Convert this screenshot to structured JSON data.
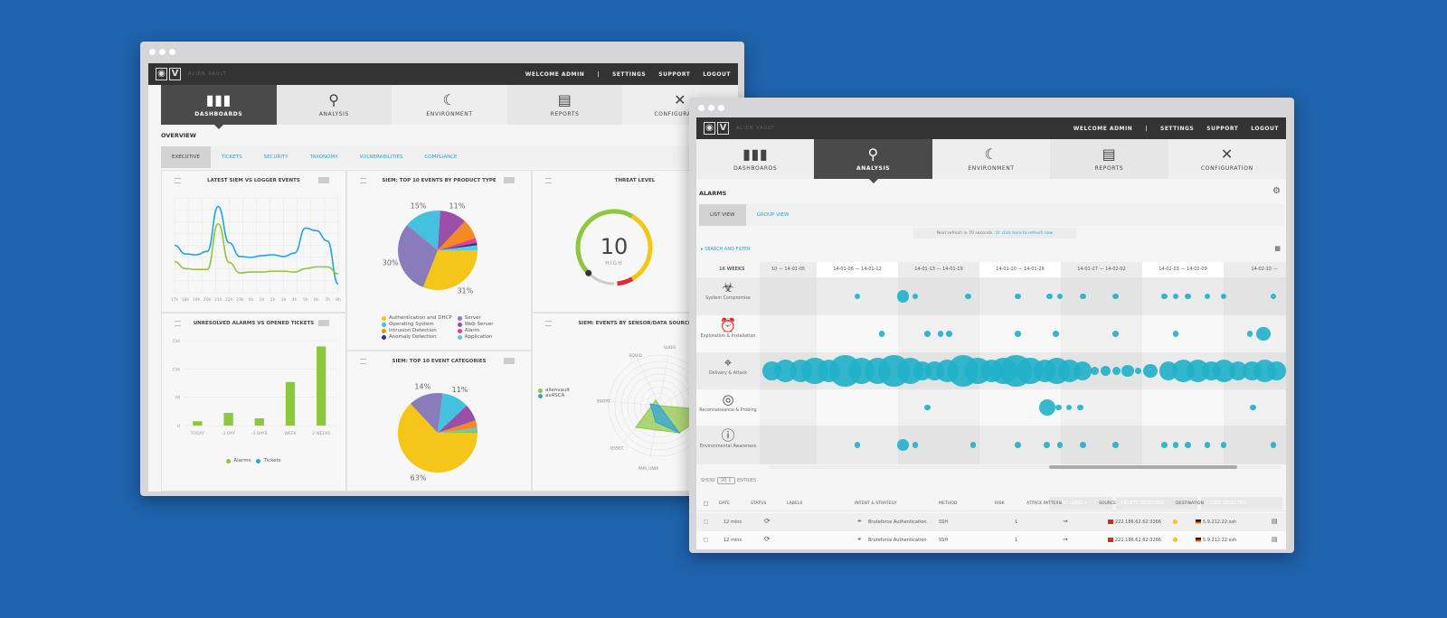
{
  "colors": {
    "background": "#1f63ad",
    "accent": "#2aa3d2",
    "green": "#8dc63f",
    "blue": "#29a3dd",
    "yellow": "#f5c518",
    "bubble": "#1fb0c9"
  },
  "brand": {
    "logo": "V",
    "name": "ALIEN VAULT"
  },
  "topmenu": {
    "welcome": "WELCOME ADMIN",
    "sep": "|",
    "settings": "SETTINGS",
    "support": "SUPPORT",
    "logout": "LOGOUT"
  },
  "nav": [
    {
      "label": "DASHBOARDS",
      "icon": "bar-chart-icon"
    },
    {
      "label": "ANALYSIS",
      "icon": "magnifier-icon"
    },
    {
      "label": "ENVIRONMENT",
      "icon": "planet-icon"
    },
    {
      "label": "REPORTS",
      "icon": "document-icon"
    },
    {
      "label": "CONFIGURATION",
      "icon": "tools-icon"
    }
  ],
  "dashboard": {
    "section": "OVERVIEW",
    "tabs": [
      "EXECUTIVE",
      "TICKETS",
      "SECURITY",
      "TAXONOMY",
      "VULNERABILITIES",
      "COMPLIANCE"
    ],
    "panels": {
      "line": "LATEST SIEM VS LOGGER EVENTS",
      "pie1": "SIEM: TOP 10 EVENTS BY PRODUCT TYPE",
      "threat": "THREAT LEVEL",
      "bars": "UNRESOLVED ALARMS VS OPENED TICKETS",
      "pie2": "SIEM: TOP 10 EVENT CATEGORIES",
      "radar": "SIEM: EVENTS BY SENSOR/DATA SOURCE"
    },
    "threat": {
      "value": "10",
      "label": "HIGH",
      "level": 0.85
    }
  },
  "chart_data": [
    {
      "type": "line",
      "x": [
        "17h",
        "18h",
        "19h",
        "20h",
        "21h",
        "22h",
        "23h",
        "0h",
        "1h",
        "2h",
        "3h",
        "4h",
        "5h",
        "6h",
        "7h",
        "8h"
      ],
      "series": [
        {
          "color": "#29a3dd",
          "values": [
            55,
            45,
            44,
            48,
            100,
            58,
            42,
            41,
            43,
            44,
            42,
            46,
            75,
            72,
            60,
            10
          ]
        },
        {
          "color": "#8dc63f",
          "values": [
            36,
            28,
            27,
            27,
            80,
            35,
            23,
            24,
            24,
            25,
            25,
            24,
            28,
            30,
            30,
            22
          ]
        }
      ]
    },
    {
      "type": "pie",
      "labels": [
        "Authentication and DHCP",
        "Server",
        "Operating System",
        "Web Server",
        "Intrusion Detection",
        "Alarm",
        "Anomaly Detection",
        "Application"
      ],
      "colors": [
        "#f5c518",
        "#8a7bbd",
        "#43c1df",
        "#9b4fa8",
        "#f58b1f",
        "#e0409a",
        "#223a8a",
        "#5cc9d6"
      ],
      "values": [
        31,
        30,
        15,
        11,
        8,
        2,
        1,
        2
      ],
      "data_labels": [
        "31%",
        "30%",
        "15%",
        "11%",
        "",
        "",
        "",
        ""
      ]
    },
    {
      "type": "bar",
      "categories": [
        "TODAY",
        "-1 DAY",
        "-2 DAYS",
        "WEEK",
        "2 WEEKS"
      ],
      "yticks": [
        "0",
        "78",
        "156",
        "234"
      ],
      "ylim": [
        0,
        234
      ],
      "series": [
        {
          "name": "Alarms",
          "color": "#8dc63f",
          "values": [
            12,
            35,
            20,
            120,
            218
          ]
        },
        {
          "name": "Tickets",
          "color": "#29a3dd",
          "values": [
            0,
            0,
            0,
            0,
            0
          ]
        }
      ]
    },
    {
      "type": "pie",
      "colors": [
        "#f5c518",
        "#8a7bbd",
        "#43c1df",
        "#9b4fa8",
        "#f58b1f",
        "#5cc9d6",
        "#8dc63f"
      ],
      "values": [
        63,
        14,
        11,
        7,
        3,
        1,
        1
      ],
      "data_labels": [
        "63%",
        "14%",
        "11%",
        "",
        "",
        "",
        ""
      ]
    },
    {
      "type": "radar",
      "axes": [
        "SUDO",
        "SQUID",
        "SNORT",
        "OSSEC",
        "PAM_UNIX"
      ],
      "series": [
        {
          "name": "alienvault",
          "color": "#8dc63f"
        },
        {
          "name": "av4SCA",
          "color": "#29a3dd"
        }
      ]
    }
  ],
  "alarms": {
    "section": "ALARMS",
    "tabs": [
      "LIST VIEW",
      "GROUP VIEW"
    ],
    "refresh": "Next refresh in 70 seconds.",
    "refresh_link": "Or click here to refresh now",
    "search": "▸ SEARCH AND FILTER",
    "weeks_label": "16 WEEKS",
    "weeks": [
      "10 — 14-01-05",
      "14-01-06 — 14-01-12",
      "14-01-13 — 14-01-19",
      "14-01-20 — 14-01-26",
      "14-01-27 — 14-02-02",
      "14-02-03 — 14-02-09",
      "14-02-10 —"
    ],
    "categories": [
      {
        "label": "System Compromise",
        "icon": "biohazard-icon",
        "bubbles": [
          [
            1.5,
            1
          ],
          [
            2.06,
            2.5
          ],
          [
            2.21,
            1
          ],
          [
            2.86,
            1
          ],
          [
            3.47,
            1
          ],
          [
            3.86,
            1
          ],
          [
            3.99,
            1
          ],
          [
            4.27,
            1
          ],
          [
            4.67,
            1
          ],
          [
            5.27,
            1
          ],
          [
            5.41,
            1
          ],
          [
            5.56,
            1
          ],
          [
            5.8,
            1
          ],
          [
            6.0,
            1
          ],
          [
            6.61,
            1
          ]
        ]
      },
      {
        "label": "Exploration & Installation",
        "icon": "alarm-clock-icon",
        "bubbles": [
          [
            1.8,
            1
          ],
          [
            2.36,
            1
          ],
          [
            2.52,
            1
          ],
          [
            2.63,
            1
          ],
          [
            3.47,
            1
          ],
          [
            3.94,
            1
          ],
          [
            4.67,
            1
          ],
          [
            5.41,
            1
          ],
          [
            6.32,
            1
          ],
          [
            6.49,
            3
          ]
        ]
      },
      {
        "label": "Delivery & Attack",
        "icon": "crosshair-icon",
        "bubbles": [
          [
            0.45,
            4
          ],
          [
            0.62,
            5
          ],
          [
            0.8,
            5
          ],
          [
            0.98,
            6
          ],
          [
            1.15,
            5
          ],
          [
            1.35,
            7
          ],
          [
            1.55,
            6
          ],
          [
            1.75,
            6
          ],
          [
            1.95,
            7
          ],
          [
            2.15,
            6
          ],
          [
            2.3,
            4
          ],
          [
            2.45,
            4
          ],
          [
            2.6,
            5
          ],
          [
            2.8,
            7
          ],
          [
            2.98,
            6
          ],
          [
            3.15,
            5
          ],
          [
            3.3,
            6
          ],
          [
            3.45,
            7
          ],
          [
            3.62,
            6
          ],
          [
            3.8,
            5
          ],
          [
            3.95,
            6
          ],
          [
            4.1,
            5
          ],
          [
            4.27,
            4
          ],
          [
            4.42,
            1.5
          ],
          [
            4.55,
            2
          ],
          [
            4.68,
            1.5
          ],
          [
            4.82,
            2.5
          ],
          [
            4.95,
            1
          ],
          [
            5.1,
            3
          ],
          [
            5.32,
            4
          ],
          [
            5.5,
            5
          ],
          [
            5.68,
            5
          ],
          [
            5.85,
            4
          ],
          [
            6.0,
            5
          ],
          [
            6.18,
            4
          ],
          [
            6.35,
            4
          ],
          [
            6.5,
            5
          ],
          [
            6.65,
            4
          ]
        ]
      },
      {
        "label": "Reconnaissance & Probing",
        "icon": "radar-icon",
        "bubbles": [
          [
            2.36,
            1
          ],
          [
            3.83,
            3.5
          ],
          [
            3.97,
            1
          ],
          [
            4.1,
            1
          ],
          [
            4.24,
            1
          ],
          [
            6.36,
            1
          ]
        ]
      },
      {
        "label": "Environmental Awareness",
        "icon": "info-icon",
        "bubbles": [
          [
            1.5,
            1
          ],
          [
            2.06,
            2.5
          ],
          [
            2.21,
            1
          ],
          [
            2.92,
            1
          ],
          [
            3.47,
            1
          ],
          [
            3.83,
            1
          ],
          [
            3.99,
            1
          ],
          [
            4.27,
            1
          ],
          [
            4.67,
            1
          ],
          [
            5.27,
            1
          ],
          [
            5.41,
            1
          ],
          [
            5.56,
            1
          ],
          [
            5.8,
            1
          ],
          [
            6.0,
            1
          ],
          [
            6.61,
            1
          ]
        ]
      }
    ],
    "show": "SHOW",
    "entries": "20",
    "entries_label": "ENTRIES",
    "buttons": [
      "APPLY LABEL ▾",
      "DELETE SELECTED",
      "CLOSE SELECTED"
    ],
    "columns": [
      "DATE",
      "STATUS",
      "LABELS",
      "INTENT & STRATEGY",
      "METHOD",
      "RISK",
      "ATTACK PATTERN",
      "SOURCE",
      "DESTINATION"
    ],
    "rows": [
      {
        "date": "12 mins",
        "intent": "Bruteforce Authentication",
        "method": "SSH",
        "risk": "1",
        "source": "222.186.62.62:3266",
        "destination": "5.9.212.22:ssh"
      },
      {
        "date": "12 mins",
        "intent": "Bruteforce Authentication",
        "method": "SSH",
        "risk": "1",
        "source": "222.186.62.62:3266",
        "destination": "5.9.212.22:ssh"
      }
    ]
  }
}
